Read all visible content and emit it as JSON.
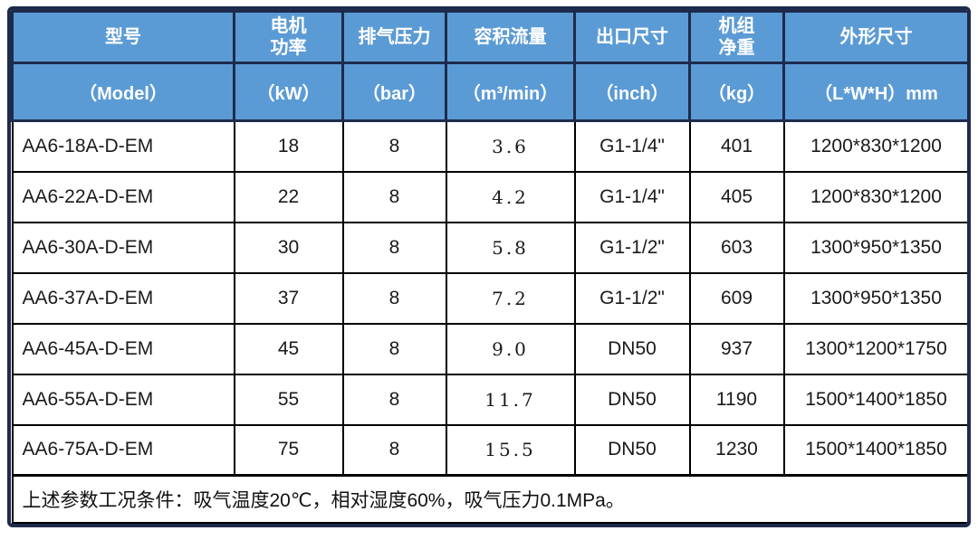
{
  "table": {
    "columns": [
      {
        "zh": "型号",
        "en": "（Model）"
      },
      {
        "zh": "电机\n功率",
        "en": "（kW）"
      },
      {
        "zh": "排气压力",
        "en": "（bar）"
      },
      {
        "zh": "容积流量",
        "en": "（m³/min）"
      },
      {
        "zh": "出口尺寸",
        "en": "（inch）"
      },
      {
        "zh": "机组\n净重",
        "en": "（kg）"
      },
      {
        "zh": "外形尺寸",
        "en": "（L*W*H）mm"
      }
    ],
    "rows": [
      {
        "model": "AA6-18A-D-EM",
        "motor_power_kw": "18",
        "discharge_pressure_bar": "8",
        "flow_m3min": "3.6",
        "outlet_size": "G1-1/4\"",
        "net_weight_kg": "401",
        "dimensions_mm": "1200*830*1200"
      },
      {
        "model": "AA6-22A-D-EM",
        "motor_power_kw": "22",
        "discharge_pressure_bar": "8",
        "flow_m3min": "4.2",
        "outlet_size": "G1-1/4\"",
        "net_weight_kg": "405",
        "dimensions_mm": "1200*830*1200"
      },
      {
        "model": "AA6-30A-D-EM",
        "motor_power_kw": "30",
        "discharge_pressure_bar": "8",
        "flow_m3min": "5.8",
        "outlet_size": "G1-1/2\"",
        "net_weight_kg": "603",
        "dimensions_mm": "1300*950*1350"
      },
      {
        "model": "AA6-37A-D-EM",
        "motor_power_kw": "37",
        "discharge_pressure_bar": "8",
        "flow_m3min": "7.2",
        "outlet_size": "G1-1/2\"",
        "net_weight_kg": "609",
        "dimensions_mm": "1300*950*1350"
      },
      {
        "model": "AA6-45A-D-EM",
        "motor_power_kw": "45",
        "discharge_pressure_bar": "8",
        "flow_m3min": "9.0",
        "outlet_size": "DN50",
        "net_weight_kg": "937",
        "dimensions_mm": "1300*1200*1750"
      },
      {
        "model": "AA6-55A-D-EM",
        "motor_power_kw": "55",
        "discharge_pressure_bar": "8",
        "flow_m3min": "11.7",
        "outlet_size": "DN50",
        "net_weight_kg": "1190",
        "dimensions_mm": "1500*1400*1850"
      },
      {
        "model": "AA6-75A-D-EM",
        "motor_power_kw": "75",
        "discharge_pressure_bar": "8",
        "flow_m3min": "15.5",
        "outlet_size": "DN50",
        "net_weight_kg": "1230",
        "dimensions_mm": "1500*1400*1850"
      }
    ],
    "footnote": "上述参数工况条件：吸气温度20℃，相对湿度60%，吸气压力0.1MPa。",
    "colors": {
      "header_bg": "#5B9BD5",
      "header_text": "#FFFFFF",
      "header_border": "#1E2B4C",
      "body_border": "#000000",
      "body_bg": "#FFFFFF",
      "body_text": "#1A1A1A"
    }
  }
}
